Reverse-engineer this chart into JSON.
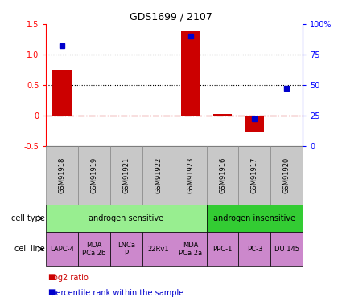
{
  "title": "GDS1699 / 2107",
  "samples": [
    "GSM91918",
    "GSM91919",
    "GSM91921",
    "GSM91922",
    "GSM91923",
    "GSM91916",
    "GSM91917",
    "GSM91920"
  ],
  "log2_ratio": [
    0.75,
    0.0,
    0.0,
    0.0,
    1.38,
    0.02,
    -0.28,
    -0.02
  ],
  "percentile_rank_pct": [
    82,
    null,
    null,
    null,
    90,
    null,
    22,
    47
  ],
  "cell_type_groups": [
    {
      "label": "androgen sensitive",
      "start": 0,
      "end": 5,
      "color": "#98EE90"
    },
    {
      "label": "androgen insensitive",
      "start": 5,
      "end": 8,
      "color": "#33CC33"
    }
  ],
  "cell_lines": [
    {
      "label": "LAPC-4",
      "col": 0
    },
    {
      "label": "MDA\nPCa 2b",
      "col": 1
    },
    {
      "label": "LNCa\nP",
      "col": 2
    },
    {
      "label": "22Rv1",
      "col": 3
    },
    {
      "label": "MDA\nPCa 2a",
      "col": 4
    },
    {
      "label": "PPC-1",
      "col": 5
    },
    {
      "label": "PC-3",
      "col": 6
    },
    {
      "label": "DU 145",
      "col": 7
    }
  ],
  "cell_line_color": "#CC88CC",
  "ylim_left": [
    -0.5,
    1.5
  ],
  "ylim_right": [
    0,
    100
  ],
  "yticks_left": [
    -0.5,
    0.0,
    0.5,
    1.0,
    1.5
  ],
  "yticks_right": [
    0,
    25,
    50,
    75,
    100
  ],
  "ytick_labels_right": [
    "0",
    "25",
    "50",
    "75",
    "100%"
  ],
  "bar_color": "#CC0000",
  "dot_color": "#0000CC",
  "hline_color": "#CC0000",
  "dotted_lines": [
    0.5,
    1.0
  ],
  "sample_bg_color": "#C8C8C8",
  "sample_border_color": "#888888"
}
